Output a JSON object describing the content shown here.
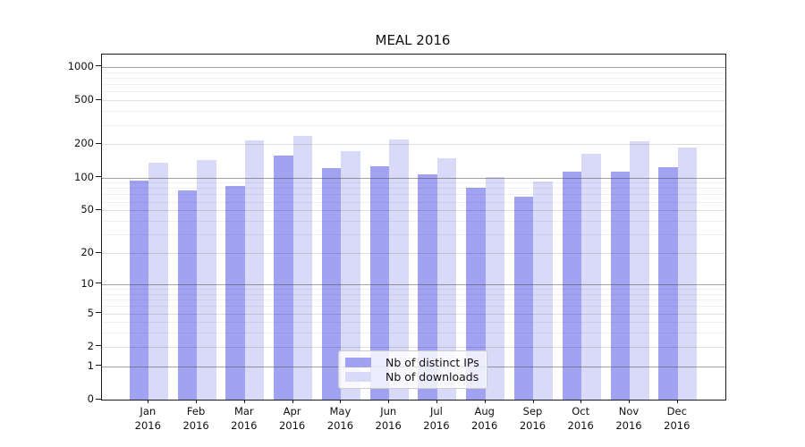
{
  "chart_data": {
    "type": "bar",
    "title": "MEAL 2016",
    "categories": [
      "Jan 2016",
      "Feb 2016",
      "Mar 2016",
      "Apr 2016",
      "May 2016",
      "Jun 2016",
      "Jul 2016",
      "Aug 2016",
      "Sep 2016",
      "Oct 2016",
      "Nov 2016",
      "Dec 2016"
    ],
    "series": [
      {
        "name": "Nb of distinct IPs",
        "color": "#a2a2f2",
        "values": [
          93,
          76,
          83,
          158,
          121,
          127,
          107,
          80,
          67,
          112,
          112,
          124
        ]
      },
      {
        "name": "Nb of downloads",
        "color": "#d9d9f8",
        "values": [
          135,
          145,
          218,
          238,
          175,
          222,
          150,
          100,
          91,
          163,
          215,
          188
        ]
      }
    ],
    "xlabel": "",
    "ylabel": "",
    "yscale": "log1p",
    "ylim": [
      0,
      1300
    ],
    "yticks": [
      0,
      1,
      2,
      5,
      10,
      20,
      50,
      100,
      200,
      500,
      1000
    ],
    "yticks_minor": [
      3,
      4,
      6,
      7,
      8,
      9,
      30,
      40,
      60,
      70,
      80,
      90,
      300,
      400,
      600,
      700,
      800,
      900
    ],
    "grid": "both",
    "legend": {
      "position": "lower-center-inside"
    }
  }
}
